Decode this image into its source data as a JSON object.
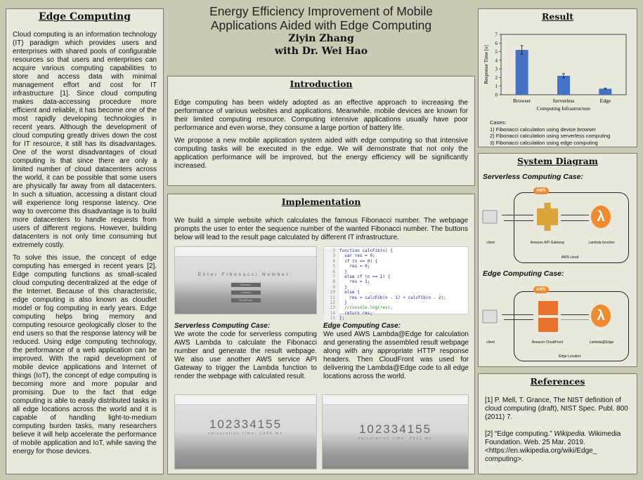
{
  "title": {
    "line1": "Energy Efficiency Improvement of Mobile",
    "line2": "Applications Aided with Edge Computing",
    "author": "Ziyin Zhang",
    "advisor": "with Dr. Wei Hao"
  },
  "left": {
    "heading": "Edge Computing",
    "p1": "Cloud computing is an information technology (IT) paradigm which provides users and enterprises with shared pools of configurable resources so that users and enterprises can acquire various computing capabilities to store and access data with minimal management effort and cost for IT infrastructure [1]. Since cloud computing makes data-accessing procedure more efficient and reliable, it has become one of the most rapidly developing technologies in recent years. Although the development of cloud computing greatly drives down the cost for IT resource, it still has its disadvantages. One of the worst disadvantages of cloud computing is that since there are only a limited number of cloud datacenters across the world, it can be possible that some users are physically far away from all datacenters. In such a situation, accessing a distant cloud will experience long response latency. One way to overcome this disadvantage is to build more datacenters to handle requests from users of different regions. However, building datacenters is not only time consuming but extremely costly.",
    "p2": "To solve this issue, the concept of edge computing has emerged in recent years [2]. Edge computing functions as small-scaled cloud computing decentralized at the edge of the Internet. Because of this characteristic, edge computing is also known as cloudlet model or fog computing in early years. Edge computing helps bring memory and computing resource geologically closer to the end users so that the response latency will be reduced. Using edge computing technology, the performance of a web application can be improved. With the rapid development of mobile device applications and Internet of things (IoT), the concept of edge computing is becoming more and more popular and promising. Due to the fact that edge computing is able to easily distributed tasks in all edge locations across the world and it is capable of handling light-to-medium computing burden tasks, many researchers believe it will help accelerate the performance of mobile application and IoT, while saving the energy for those devices."
  },
  "intro": {
    "heading": "Introduction",
    "p1": "Edge computing has been widely adopted as an effective approach to increasing the performance of various websites and applications. Meanwhile. mobile devices are known for their limited computing resource. Computing intensive applications usually have poor performance and even worse, they consume a large portion of battery life.",
    "p2": "We propose a new mobile application system aided with edge computing so that intensive computing tasks will be executed in the edge. We will demonstrate that not only the application performance will be improved, but the energy efficiency will be significantly increased."
  },
  "impl": {
    "heading": "Implementation",
    "p1": "We build a simple website which calculates the famous Fibonacci number. The webpage prompts the user to enter the sequence number of the wanted Fibonacci number. The buttons below will lead to the result page calculated by different IT infrastructure.",
    "app": {
      "prompt": "Enter Fibonacci Number:",
      "buttons": [
        "Browser",
        "Lambda",
        "CloudFront"
      ]
    },
    "code": [
      [
        "2",
        "function calcFib(n) {"
      ],
      [
        "3",
        "  var res = 0;"
      ],
      [
        "4",
        "  if (n <= 0) {"
      ],
      [
        "5",
        "    res = 0;"
      ],
      [
        "6",
        "  }"
      ],
      [
        "7",
        "  else if (n == 1) {"
      ],
      [
        "8",
        "    res = 1;"
      ],
      [
        "9",
        "  }"
      ],
      [
        "10",
        "  else {"
      ],
      [
        "11",
        "    res = calcFib(n - 1) + calcFib(n - 2);"
      ],
      [
        "12",
        "  }"
      ],
      [
        "13",
        "  //console.log(res);"
      ],
      [
        "14",
        "  return res;"
      ],
      [
        "15",
        "};"
      ]
    ],
    "serverless_title": "Serverless Computing Case:",
    "serverless_text": "We wrote the code for serverless computing AWS Lambda to calculate the Fibonacci number and generate the result webpage. We also use another AWS service API Gateway to trigger the Lambda function to render the webpage with calculated result.",
    "edge_title": "Edge Computing Case:",
    "edge_text": "We used AWS Lambda@Edge for calculation and generating the assembled result webpage along with any appropriate HTTP response headers. Then CloudFront was used for delivering the Lambda@Edge code to all edge locations across the world.",
    "result1": {
      "number": "102334155",
      "time": "calculation time: 1345 ms"
    },
    "result2": {
      "number": "102334155",
      "time": "calculation time: 2611 ms"
    }
  },
  "result": {
    "heading": "Result",
    "cases_title": "Cases:",
    "cases": [
      "1) Fibonacci calculation using device browser",
      "2) Fibonacci calculation using serverless computing",
      "3) Fibonacci calculation using edge computing"
    ]
  },
  "chart_data": {
    "type": "bar",
    "categories": [
      "Browser",
      "Serverless",
      "Edge"
    ],
    "values": [
      5.2,
      2.2,
      0.7
    ],
    "errors": [
      0.5,
      0.25,
      0.06
    ],
    "xlabel": "Computing Infrastructure",
    "ylabel": "Response Time [s]",
    "ylim": [
      0,
      7
    ],
    "yticks": [
      "0",
      "1",
      "2",
      "3",
      "4",
      "5",
      "6",
      "7"
    ],
    "color": "#4472c4"
  },
  "sys": {
    "heading": "System Diagram",
    "case1": {
      "title": "Serverless Computing Case:",
      "aws": "AWS",
      "client": "client",
      "service": "Amazon API Gateway",
      "function": "Lambda function",
      "region": "AWS cloud"
    },
    "case2": {
      "title": "Edge Computing Case:",
      "aws": "AWS",
      "client": "client",
      "service": "Amazon CloudFront",
      "function": "Lambda@Edge",
      "region": "Edge Location"
    }
  },
  "refs": {
    "heading": "References",
    "r1": "[1] P. Mell, T. Grance, The NIST definition of cloud computing (draft), NIST Spec. Publ. 800 (2011) 7.",
    "r2a": "[2] “Edge computing.” ",
    "r2b": "Wikipedia.",
    "r2c": " Wikimedia Foundation. Web. 25 Mar. 2019. <https://en.wikipedia.org/wiki/Edge_ computing>."
  }
}
